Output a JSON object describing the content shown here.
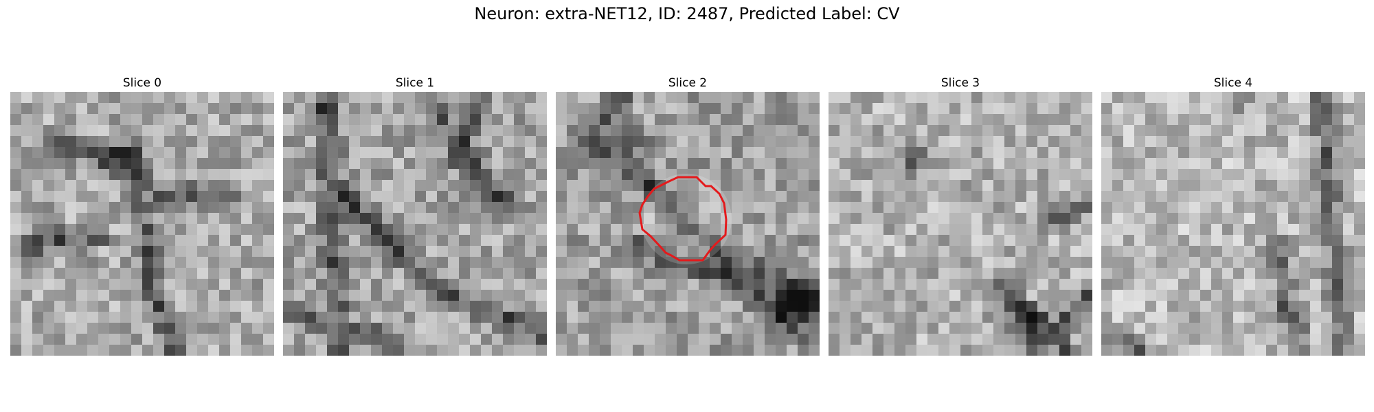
{
  "figure": {
    "title": "Neuron: extra-NET12, ID: 2487, Predicted Label: CV"
  },
  "panels": [
    {
      "title": "Slice 0"
    },
    {
      "title": "Slice 1"
    },
    {
      "title": "Slice 2"
    },
    {
      "title": "Slice 3"
    },
    {
      "title": "Slice 4"
    }
  ],
  "overlay": {
    "panel_index": 2,
    "color": "#e41a1c"
  },
  "image_colormap": "gray"
}
